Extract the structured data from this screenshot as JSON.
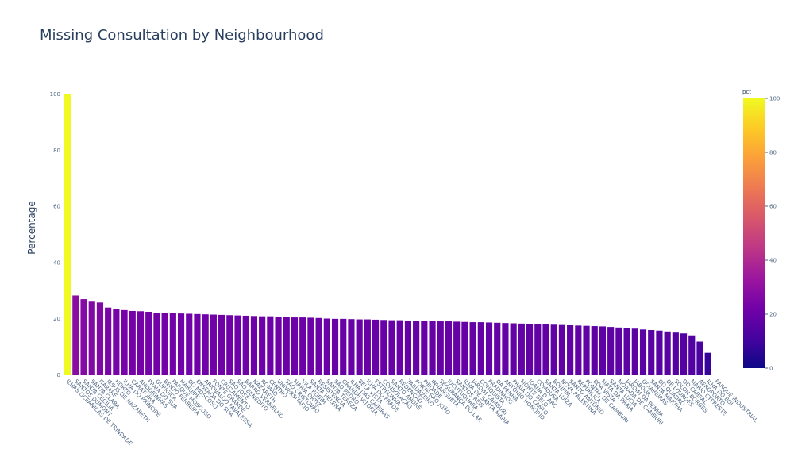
{
  "chart_data": {
    "type": "bar",
    "title": "Missing Consultation by Neighbourhood",
    "y_label": "Percentage",
    "colorbar_title": "pct",
    "categories": [
      "ILHAS OCEÂNICAS DE TRINDADE",
      "SANTOS DUMONT",
      "SANTA CECÍLIA",
      "SANTA CLARA",
      "ITARARÉ",
      "JESUS DE NAZARETH",
      "HORTO",
      "ILHA DO PRÍNCIPE",
      "CARATOÍRA",
      "ANDORINHAS",
      "PRAIA DO SUÁ",
      "GURIGICA",
      "BENTO FERREIRA",
      "PARQUE MOSCOSO",
      "MARUÍPE",
      "DO MOSCOSO",
      "ENSEADA DO SUÁ",
      "ARIOVALDO FAVALESSA",
      "FONTE GRANDE",
      "CRUZAMENTO",
      "SÃO JOSÉ",
      "SÃO BENEDITO",
      "BARRO VERMELHO",
      "NAZARETH",
      "ROMÃO",
      "CENTRO",
      "UNIVERSITÁRIO",
      "SÃO CRISTÓVÃO",
      "MARIA ORTIZ",
      "VILA RUBIM",
      "SANTA HELENA",
      "RESISTÊNCIA",
      "SANTA TEREZA",
      "SÃO PEDRO",
      "GRANDE VITÓRIA",
      "ILHA DAS CAIEIRAS",
      "BELA VISTA",
      "ILHA DO FRADE",
      "ESTRELINHA",
      "CONSOLAÇÃO",
      "SANTO ANDRÉ",
      "REDENÇÃO",
      "TABUAZEIRO",
      "FORTE SÃO JOÃO",
      "PIEDADE",
      "INHANGUETÁ",
      "SEGURANÇA DO LAR",
      "JUCUTUQUARA",
      "SANTOS REIS",
      "ILHA DE SANTA MARIA",
      "JARDIM CAMBURI",
      "CONQUISTA",
      "FRADINHOS",
      "DA PENHA",
      "ANTÔNIO HONÓRIO",
      "PRAIA DO CANTO",
      "MONTE BELO",
      "JOANA D´ARC",
      "COMDUSA",
      "SANTA LUÍZA",
      "BONFIM",
      "NOVA PALESTINA",
      "SANTO ANTÔNIO",
      "REPÚBLICA",
      "PONTAL DE CAMBURI",
      "BOA VISTA",
      "MATA DA PRAIA",
      "SANTA LÚCIA",
      "MORADA DE CAMBURI",
      "JARDIM DA PENHA",
      "JABOUR",
      "GOIABEIRAS",
      "SANTA MARTHA",
      "DO QUADRO",
      "DE LOURDES",
      "SOLON BORGES",
      "DO CABRAL",
      "MÁRIO CYPRESTE",
      "AEROPORTO",
      "ILHA DO BOI",
      "PARQUE INDUSTRIAL"
    ],
    "values": [
      100,
      28.4,
      27.1,
      26.2,
      25.9,
      24.1,
      23.6,
      23.2,
      22.9,
      22.8,
      22.6,
      22.3,
      22.2,
      22.1,
      22.0,
      21.9,
      21.8,
      21.7,
      21.6,
      21.5,
      21.4,
      21.3,
      21.2,
      21.1,
      21.0,
      21.0,
      20.9,
      20.7,
      20.6,
      20.6,
      20.5,
      20.4,
      20.2,
      20.1,
      20.1,
      20.0,
      19.9,
      19.9,
      19.8,
      19.7,
      19.6,
      19.6,
      19.5,
      19.4,
      19.4,
      19.3,
      19.2,
      19.2,
      19.1,
      19.0,
      18.9,
      18.9,
      18.8,
      18.7,
      18.6,
      18.5,
      18.4,
      18.3,
      18.2,
      18.1,
      18.0,
      17.9,
      17.8,
      17.7,
      17.6,
      17.5,
      17.4,
      17.2,
      17.0,
      16.8,
      16.6,
      16.3,
      16.1,
      15.9,
      15.6,
      15.2,
      14.9,
      14.2,
      12.0,
      8.0,
      0
    ],
    "ylim": [
      0,
      100
    ],
    "yticks": [
      0,
      20,
      40,
      60,
      80,
      100
    ],
    "clim": [
      0,
      100
    ],
    "cticks": [
      0,
      20,
      40,
      60,
      80,
      100
    ],
    "colorscale": [
      "#0d0887",
      "#46039f",
      "#7201a8",
      "#9c179e",
      "#bd3786",
      "#d8576b",
      "#ed7953",
      "#fb9f3a",
      "#fdca26",
      "#f0f921"
    ],
    "grid": false
  }
}
